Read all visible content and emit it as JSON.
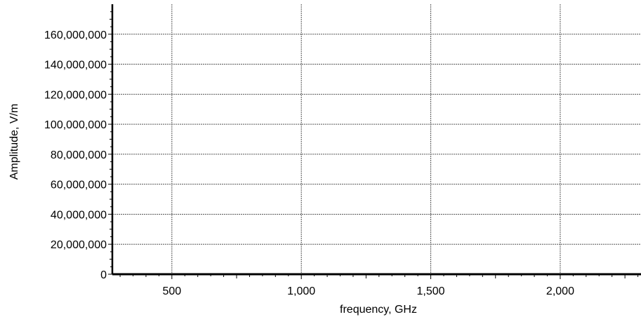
{
  "chart_data": {
    "type": "line",
    "title": "",
    "xlabel": "frequency, GHz",
    "ylabel": "Amplitude, V/m",
    "xlim": [
      270,
      2312
    ],
    "ylim": [
      0,
      180000000
    ],
    "x_ticks": [
      500,
      1000,
      1500,
      2000
    ],
    "x_tick_labels": [
      "500",
      "1,000",
      "1,500",
      "2,000"
    ],
    "y_ticks": [
      0,
      20000000,
      40000000,
      60000000,
      80000000,
      100000000,
      120000000,
      140000000,
      160000000
    ],
    "y_tick_labels": [
      "0",
      "20,000,000",
      "40,000,000",
      "60,000,000",
      "80,000,000",
      "100,000,000",
      "120,000,000",
      "140,000,000",
      "160,000,000"
    ],
    "grid": true,
    "series": [
      {
        "x": [
          270,
          2312
        ],
        "y": [
          0,
          0
        ]
      }
    ]
  }
}
